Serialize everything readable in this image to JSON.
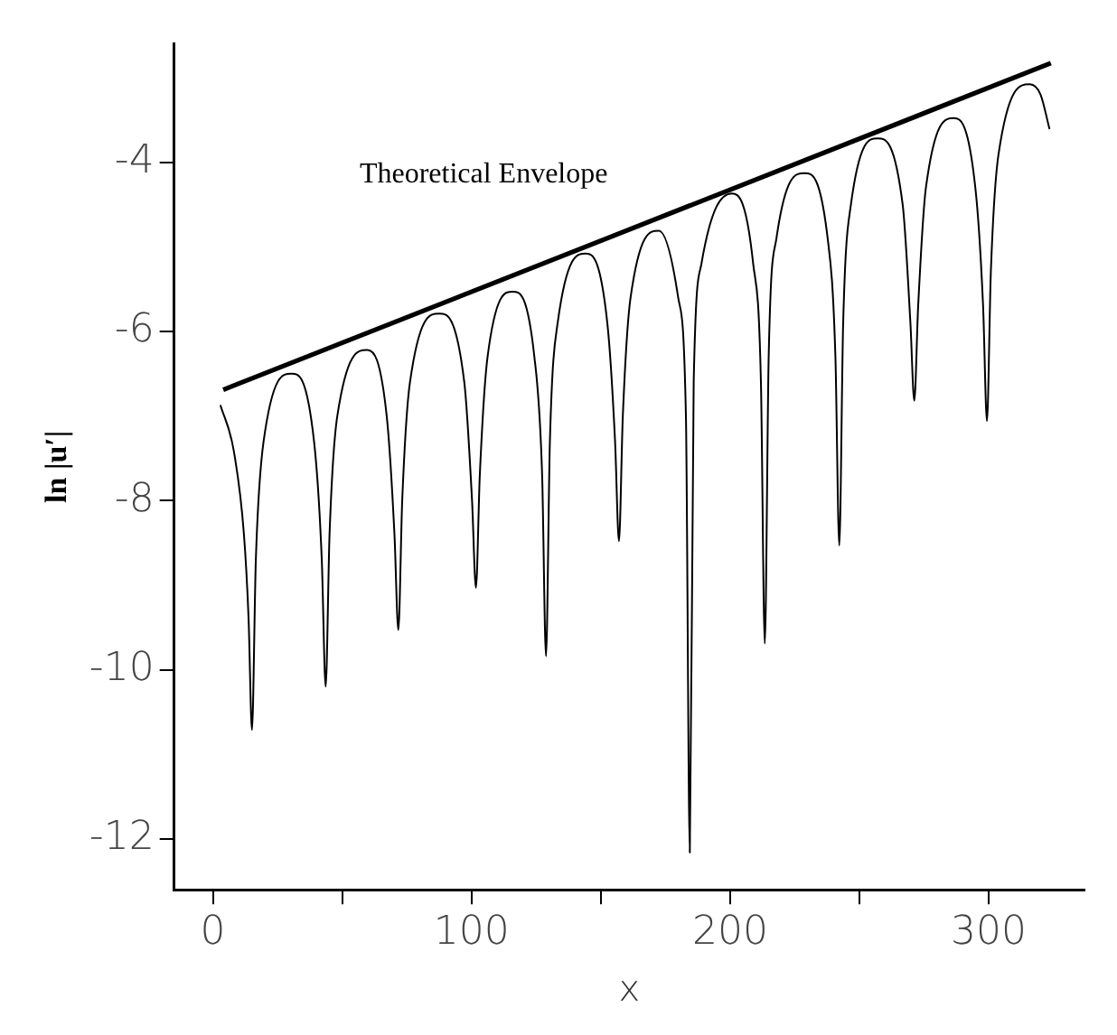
{
  "chart_data": {
    "type": "line",
    "xlabel": "x",
    "ylabel": "ln |u′|",
    "xlim": [
      -15,
      337
    ],
    "ylim": [
      -12.6,
      -2.6
    ],
    "xticks": [
      0,
      {
        "value": 50,
        "label": null
      },
      100,
      {
        "value": 150,
        "label": null
      },
      200,
      {
        "value": 250,
        "label": null
      },
      300
    ],
    "yticks": [
      -12,
      -10,
      -8,
      -6,
      -4
    ],
    "grid": false,
    "legend": false,
    "marker": "none",
    "line_style": "solid",
    "annotations": [
      "Theoretical Envelope"
    ],
    "series": [
      {
        "color": "#000000",
        "x": [
          2.9,
          8,
          12,
          13.8,
          15.1,
          16.6,
          19.6,
          30.4,
          39.1,
          42.1,
          43.6,
          45.1,
          48.1,
          59.7,
          67.2,
          70.2,
          71.7,
          73.2,
          76.2,
          87.5,
          97.2,
          100.2,
          101.7,
          103.2,
          106.2,
          116,
          124.3,
          127.3,
          128.8,
          130.3,
          133.3,
          144.3,
          152.5,
          155.5,
          157,
          158.5,
          161.5,
          172.4,
          179.9,
          182.9,
          184.4,
          185.9,
          188.9,
          200.7,
          208.9,
          211.9,
          213.4,
          214.9,
          217.9,
          228.8,
          237.7,
          240.7,
          242.2,
          243.7,
          246.7,
          257,
          266.7,
          269.7,
          271.2,
          272.7,
          275.7,
          286.5,
          294.8,
          297.8,
          299.3,
          300.8,
          303.8,
          315.8,
          320,
          323.5
        ],
        "values": [
          -6.87,
          -7.4,
          -8.4,
          -9.4,
          -10.71,
          -8.7,
          -7.3,
          -6.5,
          -7.3,
          -8.7,
          -10.2,
          -8.4,
          -7.0,
          -6.22,
          -7.0,
          -8.4,
          -9.53,
          -8.0,
          -6.6,
          -5.79,
          -6.6,
          -8.0,
          -9.03,
          -7.7,
          -6.3,
          -5.53,
          -6.3,
          -7.7,
          -9.84,
          -7.3,
          -5.9,
          -5.08,
          -5.9,
          -7.3,
          -8.48,
          -7.0,
          -5.6,
          -4.81,
          -5.6,
          -7.0,
          -12.16,
          -6.6,
          -5.2,
          -4.37,
          -5.2,
          -6.6,
          -9.69,
          -6.3,
          -4.9,
          -4.13,
          -4.9,
          -6.3,
          -8.53,
          -5.9,
          -4.5,
          -3.72,
          -4.5,
          -5.9,
          -6.82,
          -5.7,
          -4.3,
          -3.48,
          -4.3,
          -5.7,
          -7.06,
          -5.3,
          -3.9,
          -3.08,
          -3.2,
          -3.61
        ]
      },
      {
        "color": "#000000",
        "x": [
          4,
          324
        ],
        "values": [
          -6.69,
          -2.83
        ]
      }
    ]
  }
}
